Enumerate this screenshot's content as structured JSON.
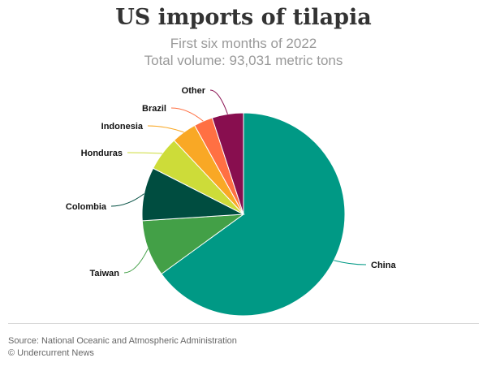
{
  "header": {
    "title": "US imports of tilapia",
    "subtitle_line1": "First six months of 2022",
    "subtitle_line2": "Total volume: 93,031 metric tons"
  },
  "footer": {
    "source": "Source: National Oceanic and Atmospheric Administration",
    "credit": "© Undercurrent News"
  },
  "chart_data": {
    "type": "pie",
    "title": "US imports of tilapia",
    "subtitle": "First six months of 2022 · Total volume: 93,031 metric tons",
    "unit": "percent of total volume (estimated)",
    "start_angle_deg": 0,
    "direction": "clockwise",
    "slices": [
      {
        "label": "China",
        "value": 65.0,
        "color": "#009985"
      },
      {
        "label": "Taiwan",
        "value": 9.0,
        "color": "#43a047"
      },
      {
        "label": "Colombia",
        "value": 8.5,
        "color": "#004d40"
      },
      {
        "label": "Honduras",
        "value": 5.5,
        "color": "#cddc39"
      },
      {
        "label": "Indonesia",
        "value": 4.0,
        "color": "#f9a825"
      },
      {
        "label": "Brazil",
        "value": 3.0,
        "color": "#ff7043"
      },
      {
        "label": "Other",
        "value": 5.0,
        "color": "#880e4f"
      }
    ]
  }
}
